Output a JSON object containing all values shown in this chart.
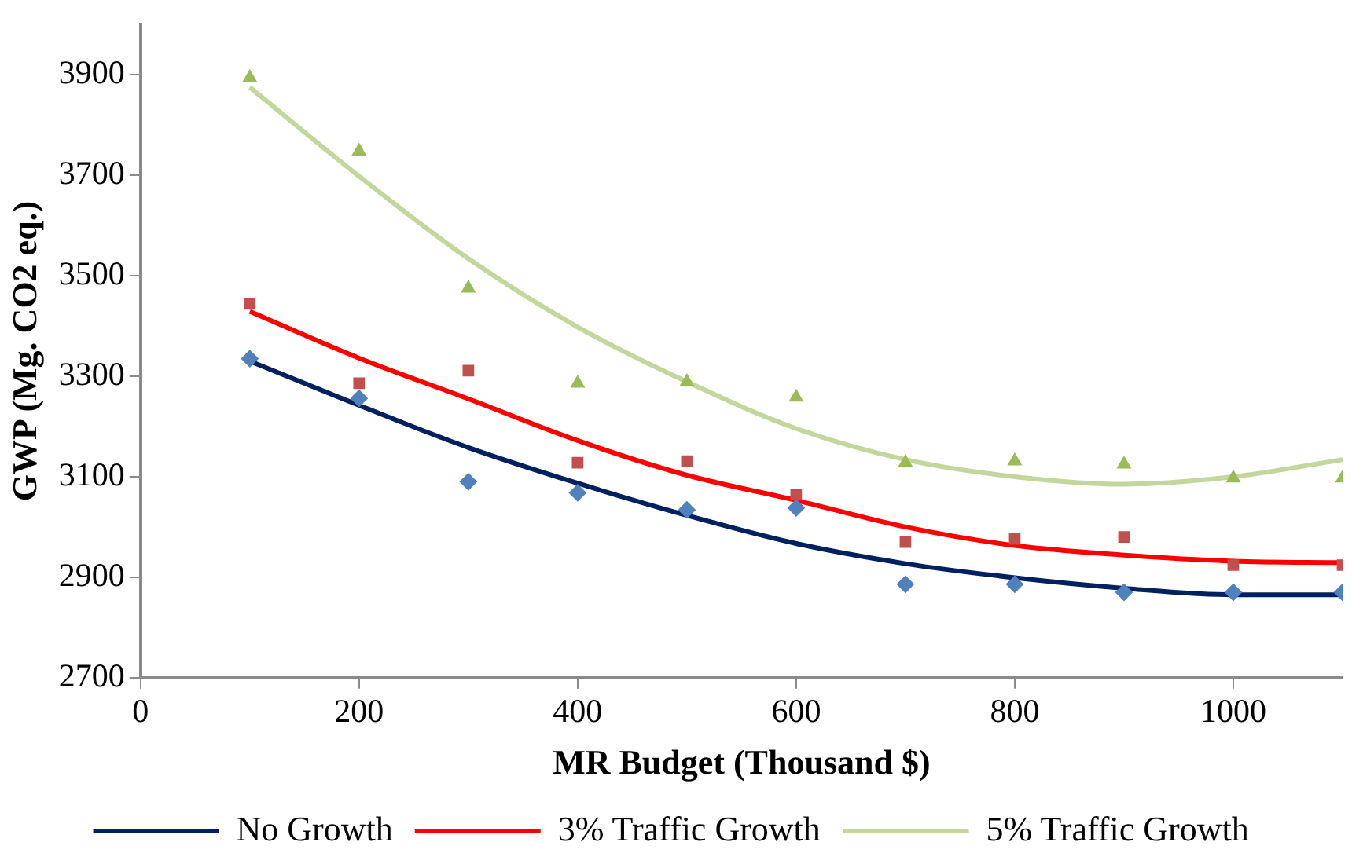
{
  "chart_data": {
    "type": "scatter",
    "xlabel": "MR Budget (Thousand $)",
    "ylabel": "GWP (Mg. CO2 eq.)",
    "x": [
      100,
      200,
      300,
      400,
      500,
      600,
      700,
      800,
      900,
      1000,
      1100
    ],
    "xlim": [
      0,
      1100
    ],
    "xticks": [
      0,
      200,
      400,
      600,
      800,
      1000
    ],
    "ylim": [
      2700,
      4000
    ],
    "yticks": [
      2700,
      2900,
      3100,
      3300,
      3500,
      3700,
      3900
    ],
    "grid": false,
    "legend": "bottom",
    "series": [
      {
        "type": "scatter",
        "marker": "diamond",
        "color": "#4f81bd",
        "values": [
          3335,
          3256,
          3090,
          3068,
          3034,
          3038,
          2886,
          2886,
          2870,
          2870,
          2870
        ]
      },
      {
        "type": "scatter",
        "marker": "square",
        "color": "#c0504d",
        "values": [
          3444,
          3286,
          3311,
          3128,
          3131,
          3065,
          2970,
          2976,
          2980,
          2924,
          2924
        ]
      },
      {
        "type": "scatter",
        "marker": "triangle",
        "color": "#9bbb59",
        "values": [
          3894,
          3748,
          3475,
          3286,
          3289,
          3258,
          3128,
          3131,
          3125,
          3097,
          3097
        ]
      },
      {
        "type": "line",
        "marker": "none",
        "name": "No Growth",
        "color": "#002060",
        "values": [
          3330,
          3242,
          3158,
          3087,
          3023,
          2967,
          2927,
          2899,
          2878,
          2865,
          2865
        ]
      },
      {
        "type": "line",
        "marker": "none",
        "name": "3% Traffic Growth",
        "color": "#ff0000",
        "values": [
          3429,
          3336,
          3255,
          3172,
          3103,
          3053,
          3000,
          2963,
          2944,
          2932,
          2929
        ]
      },
      {
        "type": "line",
        "marker": "none",
        "name": "5% Traffic Growth",
        "color": "#c3d69b",
        "values": [
          3875,
          3698,
          3534,
          3398,
          3289,
          3196,
          3134,
          3100,
          3085,
          3100,
          3134
        ]
      }
    ]
  }
}
